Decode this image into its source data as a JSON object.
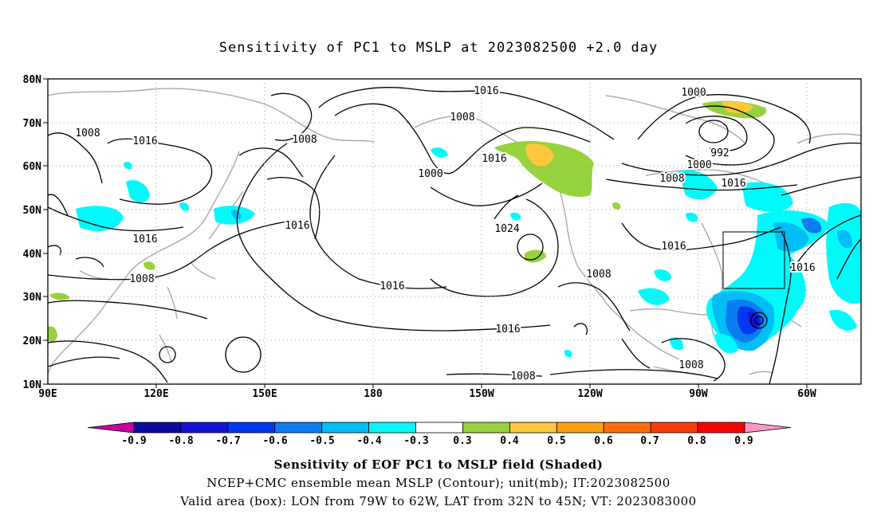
{
  "title": "Sensitivity of PC1 to MSLP at 2023082500 +2.0 day",
  "lat_labels": [
    "80N",
    "70N",
    "60N",
    "50N",
    "40N",
    "30N",
    "20N",
    "10N"
  ],
  "lon_labels": [
    "90E",
    "120E",
    "150E",
    "180",
    "150W",
    "120W",
    "90W",
    "60W"
  ],
  "contour_labels": [
    "1016",
    "1008",
    "1008",
    "1016",
    "1008",
    "1016",
    "1000",
    "1016",
    "1024",
    "1000",
    "992",
    "1000",
    "1008",
    "1016",
    "1016",
    "1016",
    "1016",
    "1008",
    "1016",
    "1008",
    "1016",
    "1008"
  ],
  "colorbar": {
    "labels": [
      "-0.9",
      "-0.8",
      "-0.7",
      "-0.6",
      "-0.5",
      "-0.4",
      "-0.3",
      "0.3",
      "0.4",
      "0.5",
      "0.6",
      "0.7",
      "0.8",
      "0.9"
    ],
    "colors": [
      "#c8009b",
      "#0a0aa0",
      "#1414d2",
      "#0037f0",
      "#0a7df0",
      "#00bef5",
      "#00fafa",
      "#ffffff",
      "#96d23c",
      "#ffc83c",
      "#ffa014",
      "#ff6e0a",
      "#ff3c0a",
      "#ff0000",
      "#ff96c8"
    ]
  },
  "caption": {
    "line1": "Sensitivity of EOF PC1 to MSLP field (Shaded)",
    "line2": "NCEP+CMC ensemble mean MSLP (Contour); unit(mb); IT:2023082500",
    "line3": "Valid area (box): LON from 79W to 62W, LAT from 32N to 45N; VT: 2023083000"
  }
}
